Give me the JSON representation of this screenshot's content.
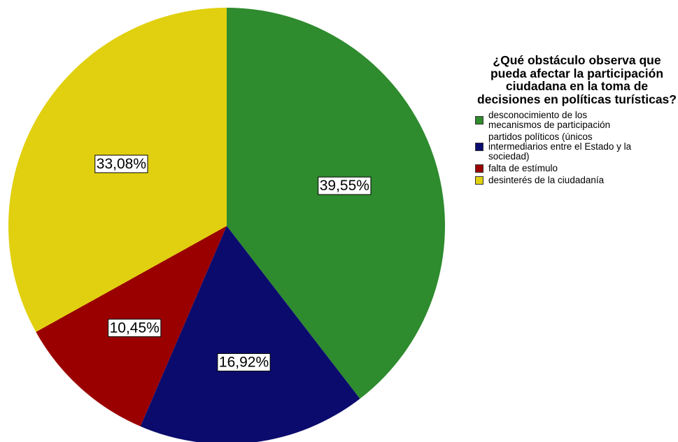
{
  "chart_data": {
    "type": "pie",
    "legend_title": "¿Qué obstáculo observa que pueda afectar la participación ciudadana en la toma de decisiones en políticas turísticas?",
    "legend_position": "right",
    "slices": [
      {
        "name": "desconocimiento de los mecanismos de participación",
        "value": 39.55,
        "label": "39,55%",
        "color": "#2e8b2e"
      },
      {
        "name": "partidos políticos (únicos intermediarios entre el Estado y la sociedad)",
        "value": 16.92,
        "label": "16,92%",
        "color": "#0b0b6e"
      },
      {
        "name": "falta de estímulo",
        "value": 10.45,
        "label": "10,45%",
        "color": "#9b0000"
      },
      {
        "name": "desinterés de la ciudadanía",
        "value": 33.08,
        "label": "33,08%",
        "color": "#e1d00f"
      }
    ],
    "legend_lines": [
      [
        "desconocimiento de los",
        "mecanismos de participación"
      ],
      [
        "partidos políticos (únicos",
        "intermediarios entre el Estado y la",
        "sociedad)"
      ],
      [
        "falta de estímulo"
      ],
      [
        "desinterés de la ciudadanía"
      ]
    ]
  }
}
